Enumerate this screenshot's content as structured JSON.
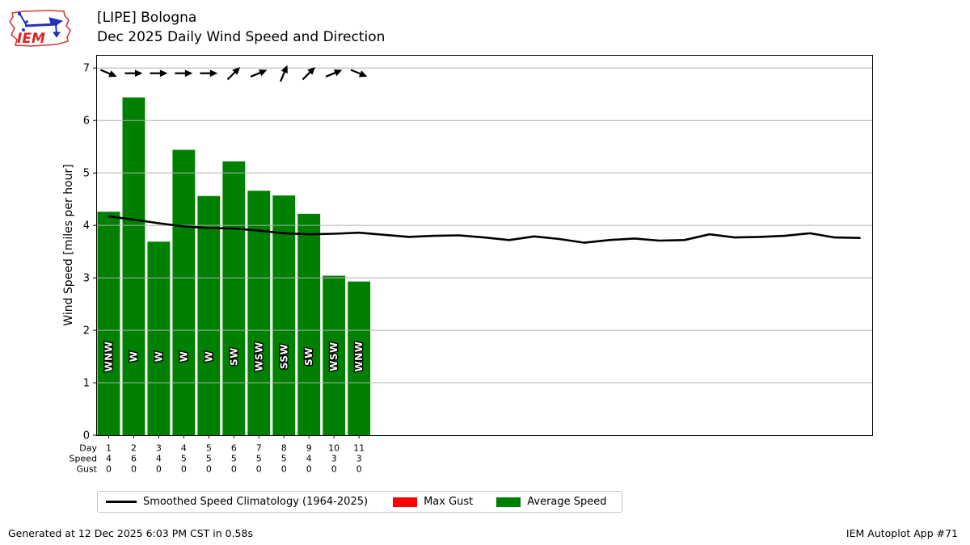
{
  "header": {
    "title": "[LIPE] Bologna",
    "subtitle": "Dec 2025 Daily Wind Speed and Direction",
    "logo_text": "IEM"
  },
  "footer": {
    "generated": "Generated at 12 Dec 2025 6:03 PM CST in 0.58s",
    "app": "IEM Autoplot App #71"
  },
  "legend": {
    "items": [
      {
        "label": "Smoothed Speed Climatology (1964-2025)",
        "type": "line",
        "color": "#000000"
      },
      {
        "label": "Max Gust",
        "type": "patch",
        "color": "#ff0000"
      },
      {
        "label": "Average Speed",
        "type": "patch",
        "color": "#008000"
      }
    ]
  },
  "chart_data": {
    "type": "bar",
    "title": "[LIPE] Bologna — Dec 2025 Daily Wind Speed and Direction",
    "ylabel": "Wind Speed [miles per hour]",
    "ylim": [
      0,
      7.25
    ],
    "yticks": [
      0,
      1,
      2,
      3,
      4,
      5,
      6,
      7
    ],
    "xlim_days": [
      0.5,
      31.5
    ],
    "grid": "horizontal",
    "bar_color": "#008000",
    "gust_color": "#ff0000",
    "line_color": "#000000",
    "grid_color": "#b0b0b0",
    "xlabel_rows": [
      "Day",
      "Speed",
      "Gust"
    ],
    "days": [
      1,
      2,
      3,
      4,
      5,
      6,
      7,
      8,
      9,
      10,
      11
    ],
    "avg_speed": [
      4.26,
      6.44,
      3.69,
      5.44,
      4.56,
      5.22,
      4.66,
      4.57,
      4.22,
      3.04,
      2.93
    ],
    "speed_labels": [
      "4",
      "6",
      "4",
      "5",
      "5",
      "5",
      "5",
      "5",
      "4",
      "3",
      "3"
    ],
    "gust_labels": [
      "0",
      "0",
      "0",
      "0",
      "0",
      "0",
      "0",
      "0",
      "0",
      "0",
      "0"
    ],
    "directions": [
      "WNW",
      "W",
      "W",
      "W",
      "W",
      "SW",
      "WSW",
      "SSW",
      "SW",
      "WSW",
      "WNW"
    ],
    "arrow_angles_deg": [
      22.5,
      0,
      0,
      0,
      0,
      -45,
      -22.5,
      -67.5,
      -45,
      -22.5,
      22.5
    ],
    "arrow_y_value": 6.9,
    "dir_label_y_value": 1.5,
    "climatology": {
      "name": "Smoothed Speed Climatology (1964-2025)",
      "days": [
        1,
        2,
        3,
        4,
        5,
        6,
        7,
        8,
        9,
        10,
        11,
        12,
        13,
        14,
        15,
        16,
        17,
        18,
        19,
        20,
        21,
        22,
        23,
        24,
        25,
        26,
        27,
        28,
        29,
        30,
        31
      ],
      "values": [
        4.17,
        4.11,
        4.04,
        3.98,
        3.95,
        3.94,
        3.9,
        3.85,
        3.83,
        3.84,
        3.86,
        3.82,
        3.78,
        3.8,
        3.81,
        3.77,
        3.72,
        3.79,
        3.74,
        3.67,
        3.72,
        3.75,
        3.71,
        3.72,
        3.83,
        3.77,
        3.78,
        3.8,
        3.85,
        3.77,
        3.76
      ]
    }
  }
}
